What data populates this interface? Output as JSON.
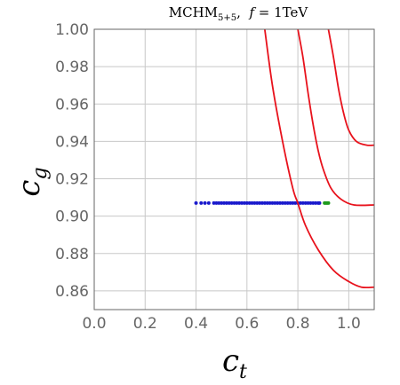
{
  "chart_data": {
    "type": "scatter",
    "title": {
      "main": "MCHM",
      "sub": "5+5",
      "mid": ",  ",
      "fvar": "f",
      "rest": " = 1TeV"
    },
    "xlabel": {
      "main": "c",
      "sub": "t"
    },
    "ylabel": {
      "main": "c",
      "sub": "g"
    },
    "xlim": [
      0.0,
      1.1
    ],
    "ylim": [
      0.85,
      1.0
    ],
    "x_ticks": [
      0.0,
      0.2,
      0.4,
      0.6,
      0.8,
      1.0
    ],
    "y_ticks": [
      0.86,
      0.88,
      0.9,
      0.92,
      0.94,
      0.96,
      0.98,
      1.0
    ],
    "x_tick_labels": [
      "0.0",
      "0.2",
      "0.4",
      "0.6",
      "0.8",
      "1.0"
    ],
    "y_tick_labels": [
      "0.86",
      "0.88",
      "0.90",
      "0.92",
      "0.94",
      "0.96",
      "0.98",
      "1.00"
    ],
    "grid": true,
    "colors": {
      "contour": "#e8121c",
      "blue_points": "#1a1acc",
      "green_points": "#1e9a1e",
      "grid": "#c8c8c8",
      "frame": "#666666"
    },
    "series": [
      {
        "kind": "scatter",
        "color_key": "blue_points",
        "y": 0.907,
        "x": [
          0.4,
          0.42,
          0.435,
          0.45,
          0.47,
          0.48,
          0.49,
          0.5,
          0.51,
          0.52,
          0.53,
          0.54,
          0.55,
          0.56,
          0.57,
          0.58,
          0.59,
          0.6,
          0.61,
          0.62,
          0.63,
          0.64,
          0.65,
          0.66,
          0.67,
          0.68,
          0.69,
          0.7,
          0.71,
          0.72,
          0.73,
          0.74,
          0.75,
          0.76,
          0.77,
          0.78,
          0.79,
          0.8,
          0.81,
          0.82,
          0.83,
          0.84,
          0.85,
          0.86,
          0.87,
          0.88,
          0.885
        ]
      },
      {
        "kind": "scatter",
        "color_key": "green_points",
        "y": 0.907,
        "x": [
          0.905,
          0.91,
          0.915,
          0.92
        ]
      },
      {
        "kind": "contour",
        "color_key": "contour",
        "points": [
          [
            0.67,
            1.0
          ],
          [
            0.7,
            0.97
          ],
          [
            0.74,
            0.94
          ],
          [
            0.78,
            0.915
          ],
          [
            0.8,
            0.907
          ],
          [
            0.83,
            0.895
          ],
          [
            0.88,
            0.882
          ],
          [
            0.94,
            0.871
          ],
          [
            1.0,
            0.865
          ],
          [
            1.05,
            0.862
          ],
          [
            1.1,
            0.862
          ]
        ]
      },
      {
        "kind": "contour",
        "color_key": "contour",
        "points": [
          [
            0.8,
            1.0
          ],
          [
            0.82,
            0.985
          ],
          [
            0.84,
            0.966
          ],
          [
            0.86,
            0.949
          ],
          [
            0.88,
            0.935
          ],
          [
            0.9,
            0.925
          ],
          [
            0.93,
            0.915
          ],
          [
            0.97,
            0.909
          ],
          [
            1.02,
            0.906
          ],
          [
            1.1,
            0.906
          ]
        ]
      },
      {
        "kind": "contour",
        "color_key": "contour",
        "points": [
          [
            0.92,
            1.0
          ],
          [
            0.94,
            0.985
          ],
          [
            0.96,
            0.968
          ],
          [
            0.98,
            0.955
          ],
          [
            1.0,
            0.946
          ],
          [
            1.03,
            0.94
          ],
          [
            1.07,
            0.938
          ],
          [
            1.1,
            0.938
          ]
        ]
      }
    ]
  }
}
